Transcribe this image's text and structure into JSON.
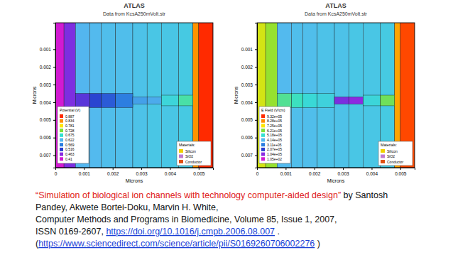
{
  "chart_data": [
    {
      "type": "heatmap",
      "title": "ATLAS",
      "subtitle": "Data from KcsA250mVolt.str",
      "x_label": "Microns",
      "y_label": "Microns",
      "xlim": [
        0,
        0.0055
      ],
      "ylim": [
        -0.0005,
        0.0077
      ],
      "xticks": [
        0,
        0.001,
        0.002,
        0.003,
        0.004,
        0.005
      ],
      "yticks": [
        0.001,
        0.002,
        0.003,
        0.004,
        0.005,
        0.006,
        0.007
      ],
      "colorbar": {
        "title": "Potential (V)",
        "ticks": [
          0.887,
          0.834,
          0.781,
          0.728,
          0.675,
          0.622,
          0.569,
          0.516,
          0.463,
          0.41
        ],
        "colors": [
          "#ff2a00",
          "#ff8c00",
          "#ffe600",
          "#7fe03a",
          "#33e0d0",
          "#55b8f0",
          "#2c7de0",
          "#2a3fd0",
          "#8a2be2",
          "#d21ad2"
        ]
      },
      "materials": {
        "title": "Materials:",
        "items": [
          {
            "name": "Silicon",
            "color": "#f0d000"
          },
          {
            "name": "SiO2",
            "color": "#c07ad0"
          },
          {
            "name": "Conductor",
            "color": "#e05010"
          }
        ]
      },
      "cells": [
        {
          "x": [
            0,
            0.0003
          ],
          "y": [
            -0.0005,
            0.0077
          ],
          "value": 0.41
        },
        {
          "x": [
            0.0003,
            0.0007
          ],
          "y": [
            -0.0005,
            0.0077
          ],
          "value": 0.47
        },
        {
          "x": [
            0.0007,
            0.0012
          ],
          "y": [
            -0.0005,
            0.0077
          ],
          "value": 0.62
        },
        {
          "x": [
            0.0012,
            0.0016
          ],
          "y": [
            -0.0005,
            0.0077
          ],
          "value": 0.625
        },
        {
          "x": [
            0.0016,
            0.0021
          ],
          "y": [
            -0.0005,
            0.0077
          ],
          "value": 0.63
        },
        {
          "x": [
            0.0021,
            0.0027
          ],
          "y": [
            -0.0005,
            0.0077
          ],
          "value": 0.63
        },
        {
          "x": [
            0.0027,
            0.0032
          ],
          "y": [
            -0.0005,
            0.0077
          ],
          "value": 0.635
        },
        {
          "x": [
            0.0032,
            0.0037
          ],
          "y": [
            -0.0005,
            0.0077
          ],
          "value": 0.64
        },
        {
          "x": [
            0.0037,
            0.0043
          ],
          "y": [
            -0.0005,
            0.0077
          ],
          "value": 0.64
        },
        {
          "x": [
            0.0043,
            0.0048
          ],
          "y": [
            -0.0005,
            0.0077
          ],
          "value": 0.645
        },
        {
          "x": [
            0.0048,
            0.005
          ],
          "y": [
            -0.0005,
            0.0077
          ],
          "value": 0.83
        },
        {
          "x": [
            0.005,
            0.0055
          ],
          "y": [
            -0.0005,
            0.0077
          ],
          "value": 0.887
        },
        {
          "x": [
            0.0007,
            0.0012
          ],
          "y": [
            0.0035,
            0.0043
          ],
          "value": 0.49
        },
        {
          "x": [
            0.0012,
            0.0016
          ],
          "y": [
            0.0035,
            0.0043
          ],
          "value": 0.52
        },
        {
          "x": [
            0.0016,
            0.0021
          ],
          "y": [
            0.0035,
            0.0043
          ],
          "value": 0.54
        },
        {
          "x": [
            0.0021,
            0.0027
          ],
          "y": [
            0.0035,
            0.0043
          ],
          "value": 0.57
        },
        {
          "x": [
            0.0027,
            0.0032
          ],
          "y": [
            0.0037,
            0.0041
          ],
          "value": 0.6
        },
        {
          "x": [
            0.0032,
            0.0037
          ],
          "y": [
            0.0037,
            0.0041
          ],
          "value": 0.61
        },
        {
          "x": [
            0.0037,
            0.0043
          ],
          "y": [
            0.0036,
            0.0042
          ],
          "value": 0.66
        },
        {
          "x": [
            0.0043,
            0.0048
          ],
          "y": [
            0.0036,
            0.0042
          ],
          "value": 0.69
        }
      ]
    },
    {
      "type": "heatmap",
      "title": "ATLAS",
      "subtitle": "Data from KcsA250mVolt.str",
      "x_label": "Microns",
      "y_label": "Microns",
      "xlim": [
        0,
        0.0055
      ],
      "ylim": [
        -0.0005,
        0.0077
      ],
      "xticks": [
        0,
        0.001,
        0.002,
        0.003,
        0.004,
        0.005
      ],
      "yticks": [
        0.001,
        0.002,
        0.003,
        0.004,
        0.005,
        0.006,
        0.007
      ],
      "colorbar": {
        "title": "E Field (V/cm)",
        "ticks": [
          {
            "value": 932000,
            "label": "9.32e+05"
          },
          {
            "value": 828000,
            "label": "8.28e+05"
          },
          {
            "value": 725000,
            "label": "7.25e+05"
          },
          {
            "value": 621000,
            "label": "6.21e+05"
          },
          {
            "value": 518000,
            "label": "5.18e+05"
          },
          {
            "value": 414000,
            "label": "4.14e+05"
          },
          {
            "value": 311000,
            "label": "3.11e+05"
          },
          {
            "value": 207000,
            "label": "2.07e+05"
          },
          {
            "value": 104000,
            "label": "1.04e+05"
          },
          {
            "value": 105,
            "label": "1.05e+02"
          }
        ],
        "colors": [
          "#ff2a00",
          "#ff8c00",
          "#ffe600",
          "#7fe03a",
          "#33e0d0",
          "#55b8f0",
          "#2c7de0",
          "#2a3fd0",
          "#8a2be2",
          "#d21ad2"
        ]
      },
      "materials": {
        "title": "Materials:",
        "items": [
          {
            "name": "Silicon",
            "color": "#f0d000"
          },
          {
            "name": "SiO2",
            "color": "#c07ad0"
          },
          {
            "name": "Conductor",
            "color": "#e05010"
          }
        ]
      },
      "cells": [
        {
          "x": [
            0,
            0.0003
          ],
          "y": [
            -0.0005,
            0.0077
          ],
          "value": 690000
        },
        {
          "x": [
            0.0003,
            0.0007
          ],
          "y": [
            -0.0005,
            0.0077
          ],
          "value": 640000
        },
        {
          "x": [
            0.0007,
            0.0012
          ],
          "y": [
            -0.0005,
            0.0077
          ],
          "value": 420000
        },
        {
          "x": [
            0.0012,
            0.0016
          ],
          "y": [
            -0.0005,
            0.0077
          ],
          "value": 430000
        },
        {
          "x": [
            0.0016,
            0.0021
          ],
          "y": [
            -0.0005,
            0.0077
          ],
          "value": 430000
        },
        {
          "x": [
            0.0021,
            0.0027
          ],
          "y": [
            -0.0005,
            0.0077
          ],
          "value": 440000
        },
        {
          "x": [
            0.0027,
            0.0032
          ],
          "y": [
            -0.0005,
            0.0077
          ],
          "value": 440000
        },
        {
          "x": [
            0.0032,
            0.0037
          ],
          "y": [
            -0.0005,
            0.0077
          ],
          "value": 450000
        },
        {
          "x": [
            0.0037,
            0.0043
          ],
          "y": [
            -0.0005,
            0.0077
          ],
          "value": 450000
        },
        {
          "x": [
            0.0043,
            0.0048
          ],
          "y": [
            -0.0005,
            0.0077
          ],
          "value": 460000
        },
        {
          "x": [
            0.0048,
            0.005
          ],
          "y": [
            -0.0005,
            0.0077
          ],
          "value": 800000
        },
        {
          "x": [
            0.005,
            0.0055
          ],
          "y": [
            -0.0005,
            0.0077
          ],
          "value": 900000
        },
        {
          "x": [
            0.0007,
            0.0012
          ],
          "y": [
            0.0035,
            0.0043
          ],
          "value": 560000
        },
        {
          "x": [
            0.0012,
            0.0016
          ],
          "y": [
            0.0035,
            0.0043
          ],
          "value": 530000
        },
        {
          "x": [
            0.0016,
            0.0021
          ],
          "y": [
            0.0035,
            0.0043
          ],
          "value": 500000
        },
        {
          "x": [
            0.0021,
            0.0027
          ],
          "y": [
            0.0035,
            0.0043
          ],
          "value": 480000
        },
        {
          "x": [
            0.0027,
            0.0032
          ],
          "y": [
            0.0037,
            0.0041
          ],
          "value": 120000
        },
        {
          "x": [
            0.0032,
            0.0037
          ],
          "y": [
            0.0037,
            0.0041
          ],
          "value": 100000
        },
        {
          "x": [
            0.0037,
            0.0043
          ],
          "y": [
            0.0036,
            0.0042
          ],
          "value": 490000
        },
        {
          "x": [
            0.0043,
            0.0048
          ],
          "y": [
            0.0036,
            0.0042
          ],
          "value": 600000
        }
      ]
    }
  ],
  "citation": {
    "lines": [
      [
        {
          "text": "“Simulation of biological ion channels with technology computer-aided design”",
          "type": "title"
        },
        {
          "text": " by Santosh",
          "type": "text"
        }
      ],
      [
        {
          "text": "Pandey, Akwete Bortei-Doku, Marvin H. White,",
          "type": "text"
        }
      ],
      [
        {
          "text": "Computer Methods and Programs in Biomedicine, Volume 85, Issue 1, 2007,",
          "type": "text"
        }
      ],
      [
        {
          "text": "ISSN 0169-2607, ",
          "type": "text"
        },
        {
          "text": "https://doi.org/10.1016/j.cmpb.2006.08.007",
          "type": "link"
        },
        {
          "text": " .",
          "type": "text"
        }
      ],
      [
        {
          "text": "(",
          "type": "text"
        },
        {
          "text": "https://www.sciencedirect.com/science/article/pii/S0169260706002276",
          "type": "link"
        },
        {
          "text": " )",
          "type": "text"
        }
      ]
    ]
  }
}
